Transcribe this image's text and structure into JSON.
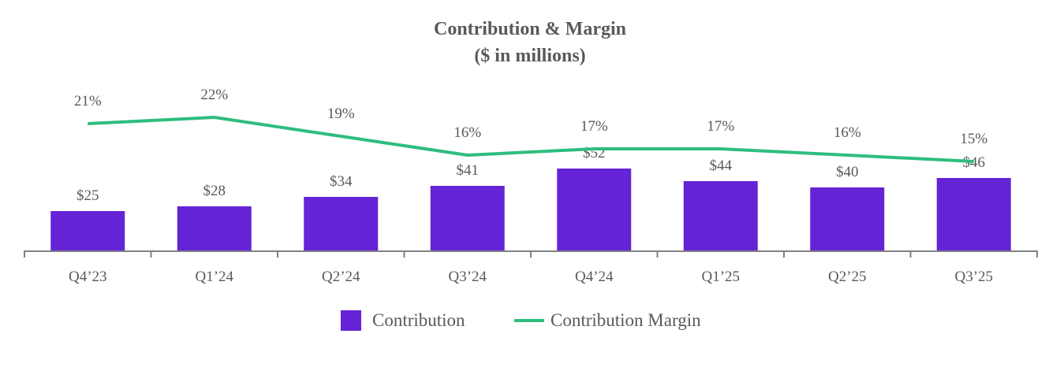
{
  "chart_data": {
    "type": "bar",
    "title": "Contribution & Margin",
    "subtitle": "($ in millions)",
    "categories": [
      "Q4’23",
      "Q1’24",
      "Q2’24",
      "Q3’24",
      "Q4’24",
      "Q1’25",
      "Q2’25",
      "Q3’25"
    ],
    "series": [
      {
        "name": "Contribution",
        "type": "bar",
        "color": "#6523D6",
        "values": [
          25,
          28,
          34,
          41,
          52,
          44,
          40,
          46
        ],
        "labels": [
          "$25",
          "$28",
          "$34",
          "$41",
          "$52",
          "$44",
          "$40",
          "$46"
        ]
      },
      {
        "name": "Contribution Margin",
        "type": "line",
        "color": "#2EBD7E",
        "values": [
          21,
          22,
          19,
          16,
          17,
          17,
          16,
          15
        ],
        "labels": [
          "21%",
          "22%",
          "19%",
          "16%",
          "17%",
          "17%",
          "16%",
          "15%"
        ]
      }
    ],
    "grid": false,
    "legend": "bottom",
    "axis_color": "#808080"
  }
}
